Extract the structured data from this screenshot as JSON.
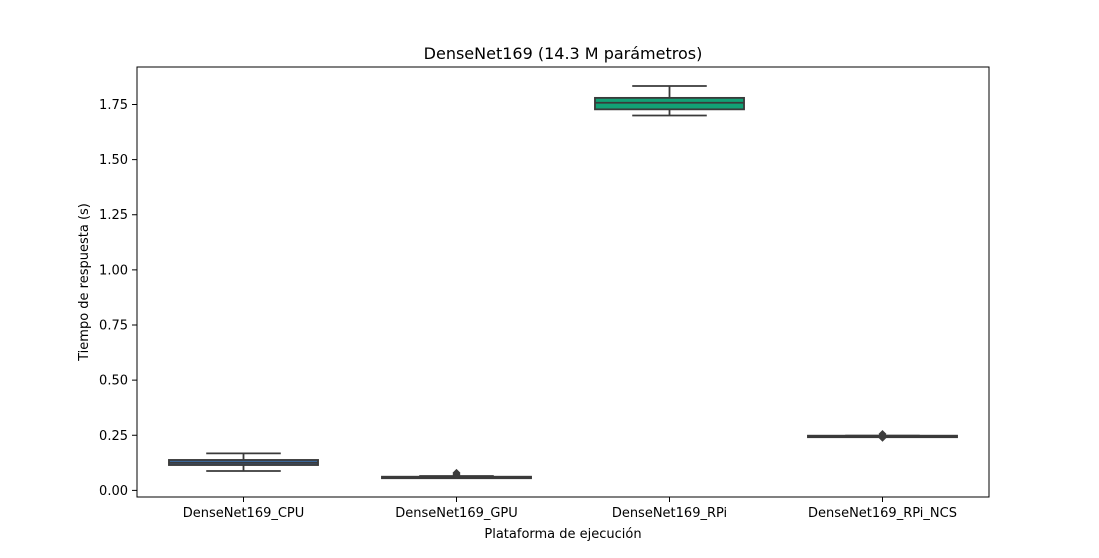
{
  "chart_data": {
    "type": "box",
    "title": "DenseNet169 (14.3 M parámetros)",
    "xlabel": "Plataforma de ejecución",
    "ylabel": "Tiempo de respuesta (s)",
    "ylim": [
      -0.03,
      1.92
    ],
    "yticks": [
      "0.00",
      "0.25",
      "0.50",
      "0.75",
      "1.00",
      "1.25",
      "1.50",
      "1.75"
    ],
    "yticks_values": [
      0.0,
      0.25,
      0.5,
      0.75,
      1.0,
      1.25,
      1.5,
      1.75
    ],
    "grid": false,
    "categories": [
      "DenseNet169_CPU",
      "DenseNet169_GPU",
      "DenseNet169_RPi",
      "DenseNet169_RPi_NCS"
    ],
    "boxes": [
      {
        "whisker_low": 0.088,
        "q1": 0.115,
        "median": 0.125,
        "q3": 0.138,
        "whisker_high": 0.168,
        "outliers": [],
        "color": "#3b6ca8"
      },
      {
        "whisker_low": 0.06,
        "q1": 0.06,
        "median": 0.061,
        "q3": 0.062,
        "whisker_high": 0.065,
        "outliers": [
          0.07,
          0.074,
          0.078,
          0.08
        ],
        "color": "#2a8f6e"
      },
      {
        "whisker_low": 1.7,
        "q1": 1.728,
        "median": 1.758,
        "q3": 1.78,
        "whisker_high": 1.834,
        "outliers": [],
        "color": "#12a175"
      },
      {
        "whisker_low": 0.247,
        "q1": 0.247,
        "median": 0.247,
        "q3": 0.248,
        "whisker_high": 0.248,
        "outliers": [
          0.238,
          0.242,
          0.252,
          0.256
        ],
        "color": "#2f7a5e"
      }
    ]
  }
}
